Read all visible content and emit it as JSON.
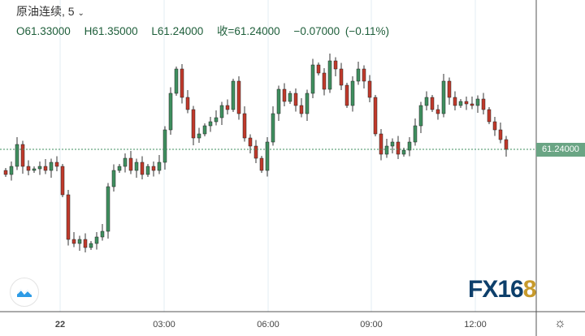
{
  "header": {
    "symbol_title": "原油连续, 5",
    "dropdown_icon": "chevron-down-icon",
    "open": "O61.33000",
    "high": "H61.35000",
    "low": "L61.24000",
    "close": "收=61.24000",
    "change": "−0.07000 (−0.11%)"
  },
  "price_tag": "61.24000",
  "logo": {
    "main": "FX16",
    "accent": "8"
  },
  "colors": {
    "up": "#3f8f5f",
    "down": "#c0392b",
    "grid": "#e3ecf3",
    "last_price_line": "#3f8f5f"
  },
  "chart_data": {
    "type": "candlestick",
    "title": "原油连续, 5",
    "x_tick_labels": [
      "22",
      "03:00",
      "06:00",
      "09:00",
      "12:00"
    ],
    "ylim": [
      60.84,
      61.608
    ],
    "last_price": 61.24,
    "grid": true,
    "close": [
      61.178,
      61.198,
      61.252,
      61.198,
      61.188,
      61.192,
      61.198,
      61.188,
      61.208,
      61.198,
      61.128,
      61.018,
      61.008,
      61.018,
      60.998,
      61.008,
      61.024,
      61.038,
      61.148,
      61.188,
      61.198,
      61.218,
      61.188,
      61.208,
      61.178,
      61.198,
      61.188,
      61.208,
      61.288,
      61.378,
      61.438,
      61.368,
      61.338,
      61.268,
      61.278,
      61.298,
      61.308,
      61.318,
      61.348,
      61.338,
      61.408,
      61.328,
      61.268,
      61.248,
      61.218,
      61.188,
      61.258,
      61.328,
      61.388,
      61.358,
      61.378,
      61.348,
      61.328,
      61.378,
      61.448,
      61.428,
      61.388,
      61.458,
      61.438,
      61.398,
      61.348,
      61.408,
      61.438,
      61.408,
      61.368,
      61.278,
      61.228,
      61.248,
      61.258,
      61.228,
      61.238,
      61.258,
      61.298,
      61.348,
      61.368,
      61.338,
      61.328,
      61.408,
      61.368,
      61.348,
      61.358,
      61.352,
      61.348,
      61.364,
      61.338,
      61.308,
      61.288,
      61.264,
      61.24
    ]
  }
}
